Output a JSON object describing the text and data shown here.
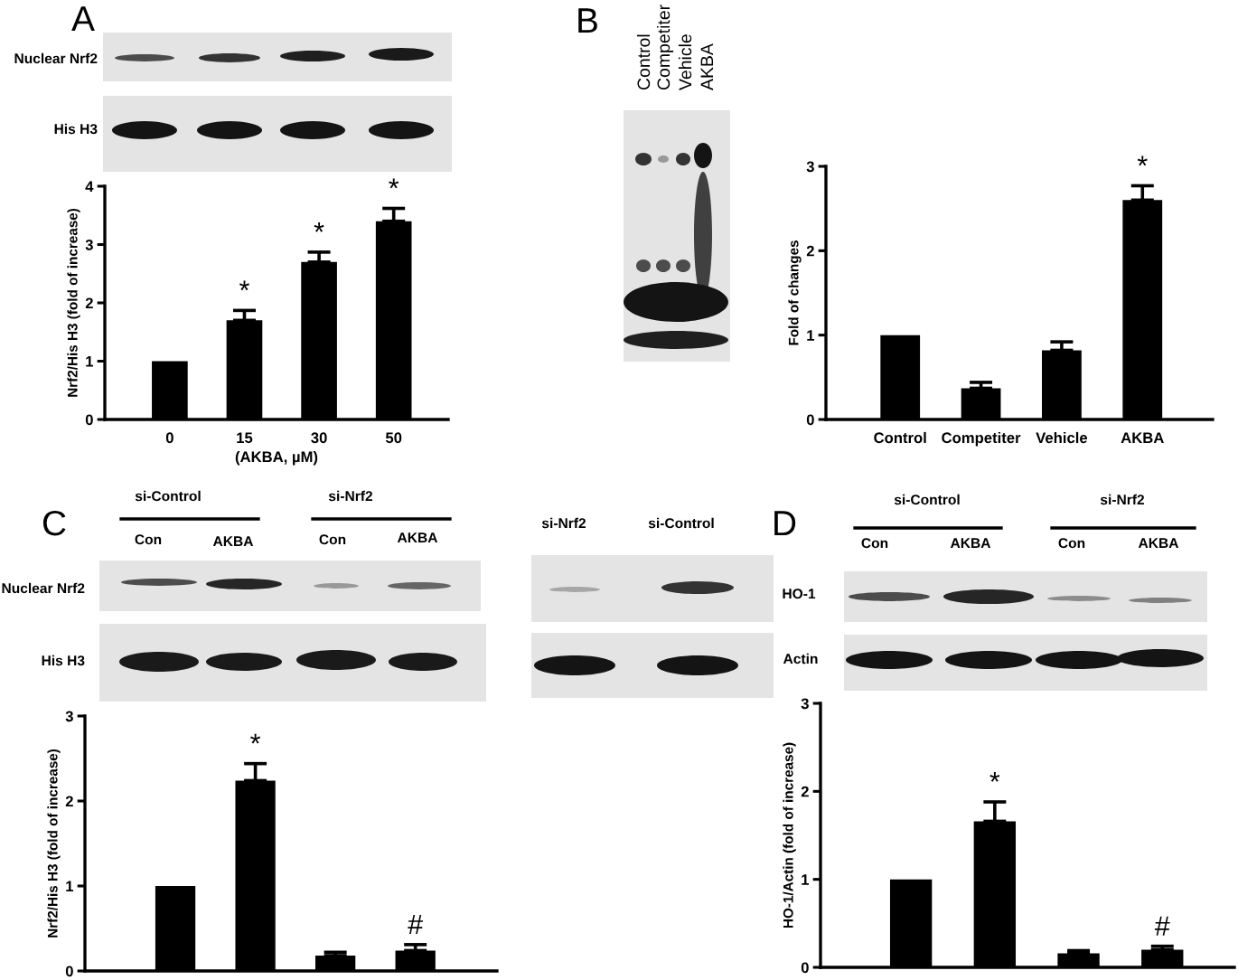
{
  "chart_data": [
    {
      "type": "bar",
      "categories": [
        "0",
        "15",
        "30",
        "50"
      ],
      "values": [
        1.0,
        1.7,
        2.7,
        3.4
      ],
      "color": "#000000",
      "errors": [
        null,
        [
          1.7,
          1.87
        ],
        [
          2.7,
          2.87
        ],
        [
          3.4,
          3.62
        ]
      ],
      "value_labels": [
        null,
        "*",
        "*",
        "*"
      ],
      "xlabel": "(AKBA, µM)",
      "ylabel": "Nrf2/His H3 (fold of increase)",
      "ylim": [
        0,
        4
      ],
      "yticks": [
        0,
        1,
        2,
        3,
        4
      ],
      "annotations": [
        "A",
        "Nuclear Nrf2",
        "His H3"
      ]
    },
    {
      "type": "bar",
      "categories": [
        "Control",
        "Competiter",
        "Vehicle",
        "AKBA"
      ],
      "values": [
        1.0,
        0.37,
        0.82,
        2.6
      ],
      "color": "#000000",
      "errors": [
        null,
        [
          0.37,
          0.44
        ],
        [
          0.82,
          0.92
        ],
        [
          2.6,
          2.77
        ]
      ],
      "value_labels": [
        null,
        null,
        null,
        "*"
      ],
      "ylabel": "Fold of changes",
      "ylim": [
        0,
        3
      ],
      "yticks": [
        0,
        1,
        2,
        3
      ],
      "annotations": [
        "B",
        "Control",
        "Competiter",
        "Vehicle",
        "AKBA"
      ]
    },
    {
      "type": "bar",
      "categories": [
        null,
        null,
        null,
        null
      ],
      "values": [
        1.0,
        2.24,
        0.18,
        0.24
      ],
      "color": "#000000",
      "errors": [
        null,
        [
          2.24,
          2.44
        ],
        [
          0.18,
          0.22
        ],
        [
          0.24,
          0.31
        ]
      ],
      "value_labels": [
        null,
        "*",
        null,
        "#"
      ],
      "ylabel": "Nrf2/His H3 (fold of increase)",
      "ylim": [
        0,
        3
      ],
      "yticks": [
        0,
        1,
        2,
        3
      ],
      "tick_labels": "y",
      "annotations": [
        "C",
        "si-Control",
        "si-Nrf2",
        "Con",
        "AKBA",
        "Con",
        "AKBA",
        "Nuclear Nrf2",
        "His H3",
        "si-Nrf2",
        "si-Control"
      ]
    },
    {
      "type": "bar",
      "categories": [
        null,
        null,
        null,
        null
      ],
      "values": [
        1.0,
        1.66,
        0.16,
        0.2
      ],
      "color": "#000000",
      "errors": [
        null,
        [
          1.66,
          1.88
        ],
        [
          0.16,
          0.19
        ],
        [
          0.2,
          0.24
        ]
      ],
      "value_labels": [
        null,
        "*",
        null,
        "#"
      ],
      "ylabel": "HO-1/Actin (fold of increase)",
      "ylim": [
        0,
        3
      ],
      "yticks": [
        0,
        1,
        2,
        3
      ],
      "tick_labels": "y",
      "annotations": [
        "D",
        "si-Control",
        "si-Nrf2",
        "Con",
        "AKBA",
        "Con",
        "AKBA",
        "HO-1",
        "Actin"
      ]
    }
  ]
}
